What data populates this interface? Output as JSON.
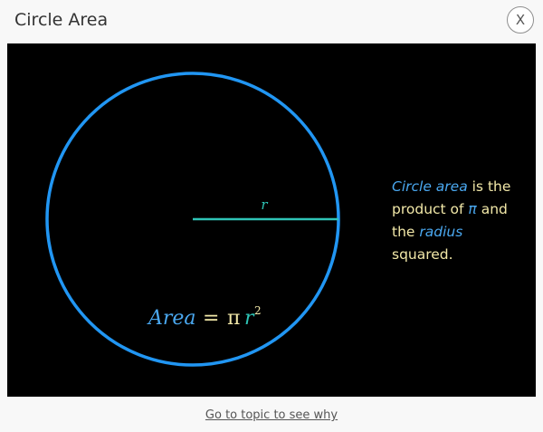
{
  "dialog": {
    "title": "Circle Area",
    "close_label": "X",
    "link_text": "Go to topic to see why"
  },
  "diagram": {
    "radius_label": "r",
    "formula": {
      "lhs": "Area",
      "equals": "=",
      "pi": "π",
      "var": "r",
      "exponent": "2"
    },
    "explanation": {
      "circle_area": "Circle area",
      "part1": " is the product of ",
      "pi": "π",
      "part2": " and the ",
      "radius": "radius",
      "part3": " squared."
    }
  },
  "colors": {
    "circle": "#2196f3",
    "radius_line": "#2ec4b6",
    "highlight_text": "#4aa8f0",
    "body_text": "#f2e8a8",
    "canvas_bg": "#000000"
  }
}
